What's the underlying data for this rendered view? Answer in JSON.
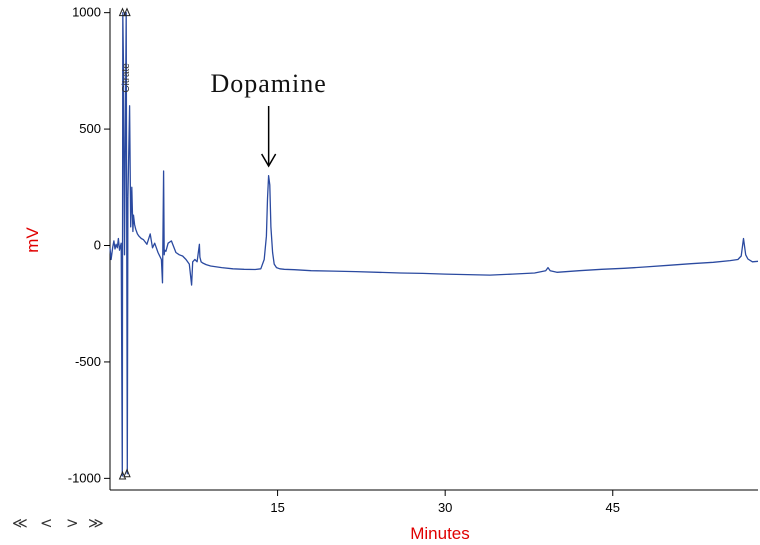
{
  "chart_data": {
    "type": "line",
    "xlabel": "Minutes",
    "ylabel": "mV",
    "xlim": [
      0,
      58
    ],
    "ylim": [
      -1050,
      1020
    ],
    "xticks": [
      15,
      30,
      45
    ],
    "yticks": [
      1000,
      500,
      0,
      -500,
      -1000
    ],
    "grid": false,
    "annotations": [
      {
        "text": "Dopamine",
        "x": 14.2,
        "y": 290,
        "style": "arrow-down"
      }
    ],
    "series": [
      {
        "color": "#2b4aa0",
        "x": [
          0.0,
          0.1,
          0.25,
          0.35,
          0.45,
          0.55,
          0.65,
          0.75,
          0.85,
          0.95,
          1.0,
          1.1,
          1.15,
          1.2,
          1.3,
          1.45,
          1.55,
          1.6,
          1.75,
          1.85,
          1.95,
          2.05,
          2.1,
          2.2,
          2.3,
          2.45,
          2.6,
          2.8,
          3.0,
          3.3,
          3.6,
          3.8,
          4.0,
          4.3,
          4.6,
          4.7,
          4.8,
          4.85,
          4.9,
          5.0,
          5.2,
          5.5,
          5.9,
          6.2,
          6.5,
          6.8,
          7.1,
          7.3,
          7.4,
          7.6,
          7.8,
          8.0,
          8.05,
          8.15,
          8.3,
          8.6,
          9.0,
          10.0,
          11.0,
          12.0,
          13.0,
          13.5,
          13.8,
          14.0,
          14.1,
          14.2,
          14.3,
          14.4,
          14.55,
          14.7,
          14.9,
          15.2,
          15.6,
          16.5,
          18.0,
          20.0,
          22.0,
          24.0,
          26.0,
          28.0,
          30.0,
          32.0,
          34.0,
          36.0,
          38.0,
          39.0,
          39.2,
          39.4,
          40.0,
          42.0,
          44.0,
          46.0,
          48.0,
          50.0,
          52.0,
          54.0,
          55.5,
          56.2,
          56.5,
          56.7,
          56.9,
          57.1,
          57.5,
          58.0
        ],
        "y": [
          -10,
          -60,
          -5,
          20,
          -15,
          5,
          -10,
          30,
          -20,
          0,
          10,
          -990,
          1000,
          800,
          -40,
          1000,
          -980,
          200,
          600,
          80,
          250,
          60,
          130,
          90,
          70,
          50,
          40,
          30,
          25,
          5,
          50,
          -10,
          10,
          -30,
          -60,
          -160,
          320,
          -40,
          -20,
          -25,
          10,
          20,
          -30,
          -40,
          -45,
          -60,
          -80,
          -170,
          -70,
          -60,
          -70,
          5,
          -50,
          -70,
          -75,
          -82,
          -88,
          -95,
          -100,
          -102,
          -103,
          -100,
          -60,
          40,
          200,
          300,
          260,
          80,
          -30,
          -80,
          -95,
          -100,
          -102,
          -104,
          -108,
          -110,
          -112,
          -115,
          -118,
          -120,
          -123,
          -125,
          -127,
          -123,
          -118,
          -108,
          -95,
          -108,
          -115,
          -108,
          -102,
          -98,
          -92,
          -85,
          -78,
          -72,
          -65,
          -60,
          -45,
          30,
          -40,
          -58,
          -70,
          -68
        ]
      }
    ]
  },
  "markers": [
    "triangle",
    "triangle",
    "triangle",
    "triangle"
  ],
  "peak_labels": [
    "Citrate"
  ],
  "nav": {
    "first": "≪",
    "prev": "<",
    "next": ">",
    "last": "≫"
  }
}
